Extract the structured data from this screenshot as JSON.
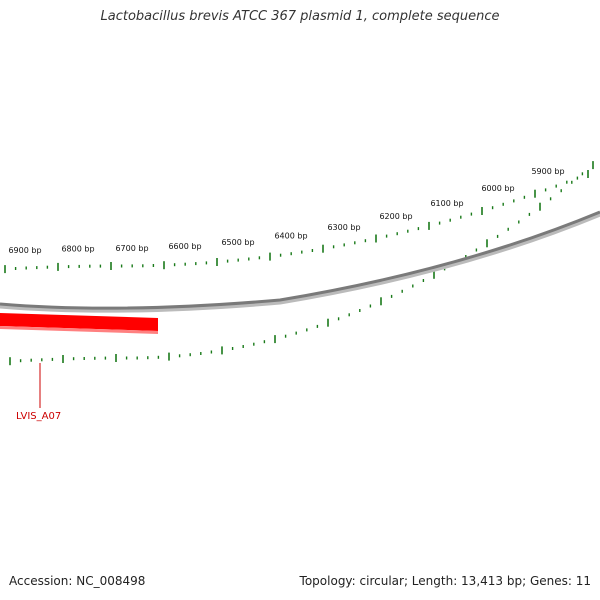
{
  "title": "Lactobacillus brevis ATCC 367 plasmid 1, complete sequence",
  "footer": {
    "accession": "Accession: NC_008498",
    "summary": "Topology: circular; Length: 13,413 bp; Genes: 11"
  },
  "colors": {
    "backbone": "#7a7a7a",
    "tick": "#1a7a1a",
    "gene": "#ff0000",
    "gene_label": "#cc0000"
  },
  "ruler": {
    "labels": [
      "5900 bp",
      "6000 bp",
      "6100 bp",
      "6200 bp",
      "6300 bp",
      "6400 bp",
      "6500 bp",
      "6600 bp",
      "6700 bp",
      "6800 bp",
      "6900 bp"
    ]
  },
  "genes": [
    {
      "name": "LVIS_A07",
      "color": "#ff0000"
    }
  ]
}
